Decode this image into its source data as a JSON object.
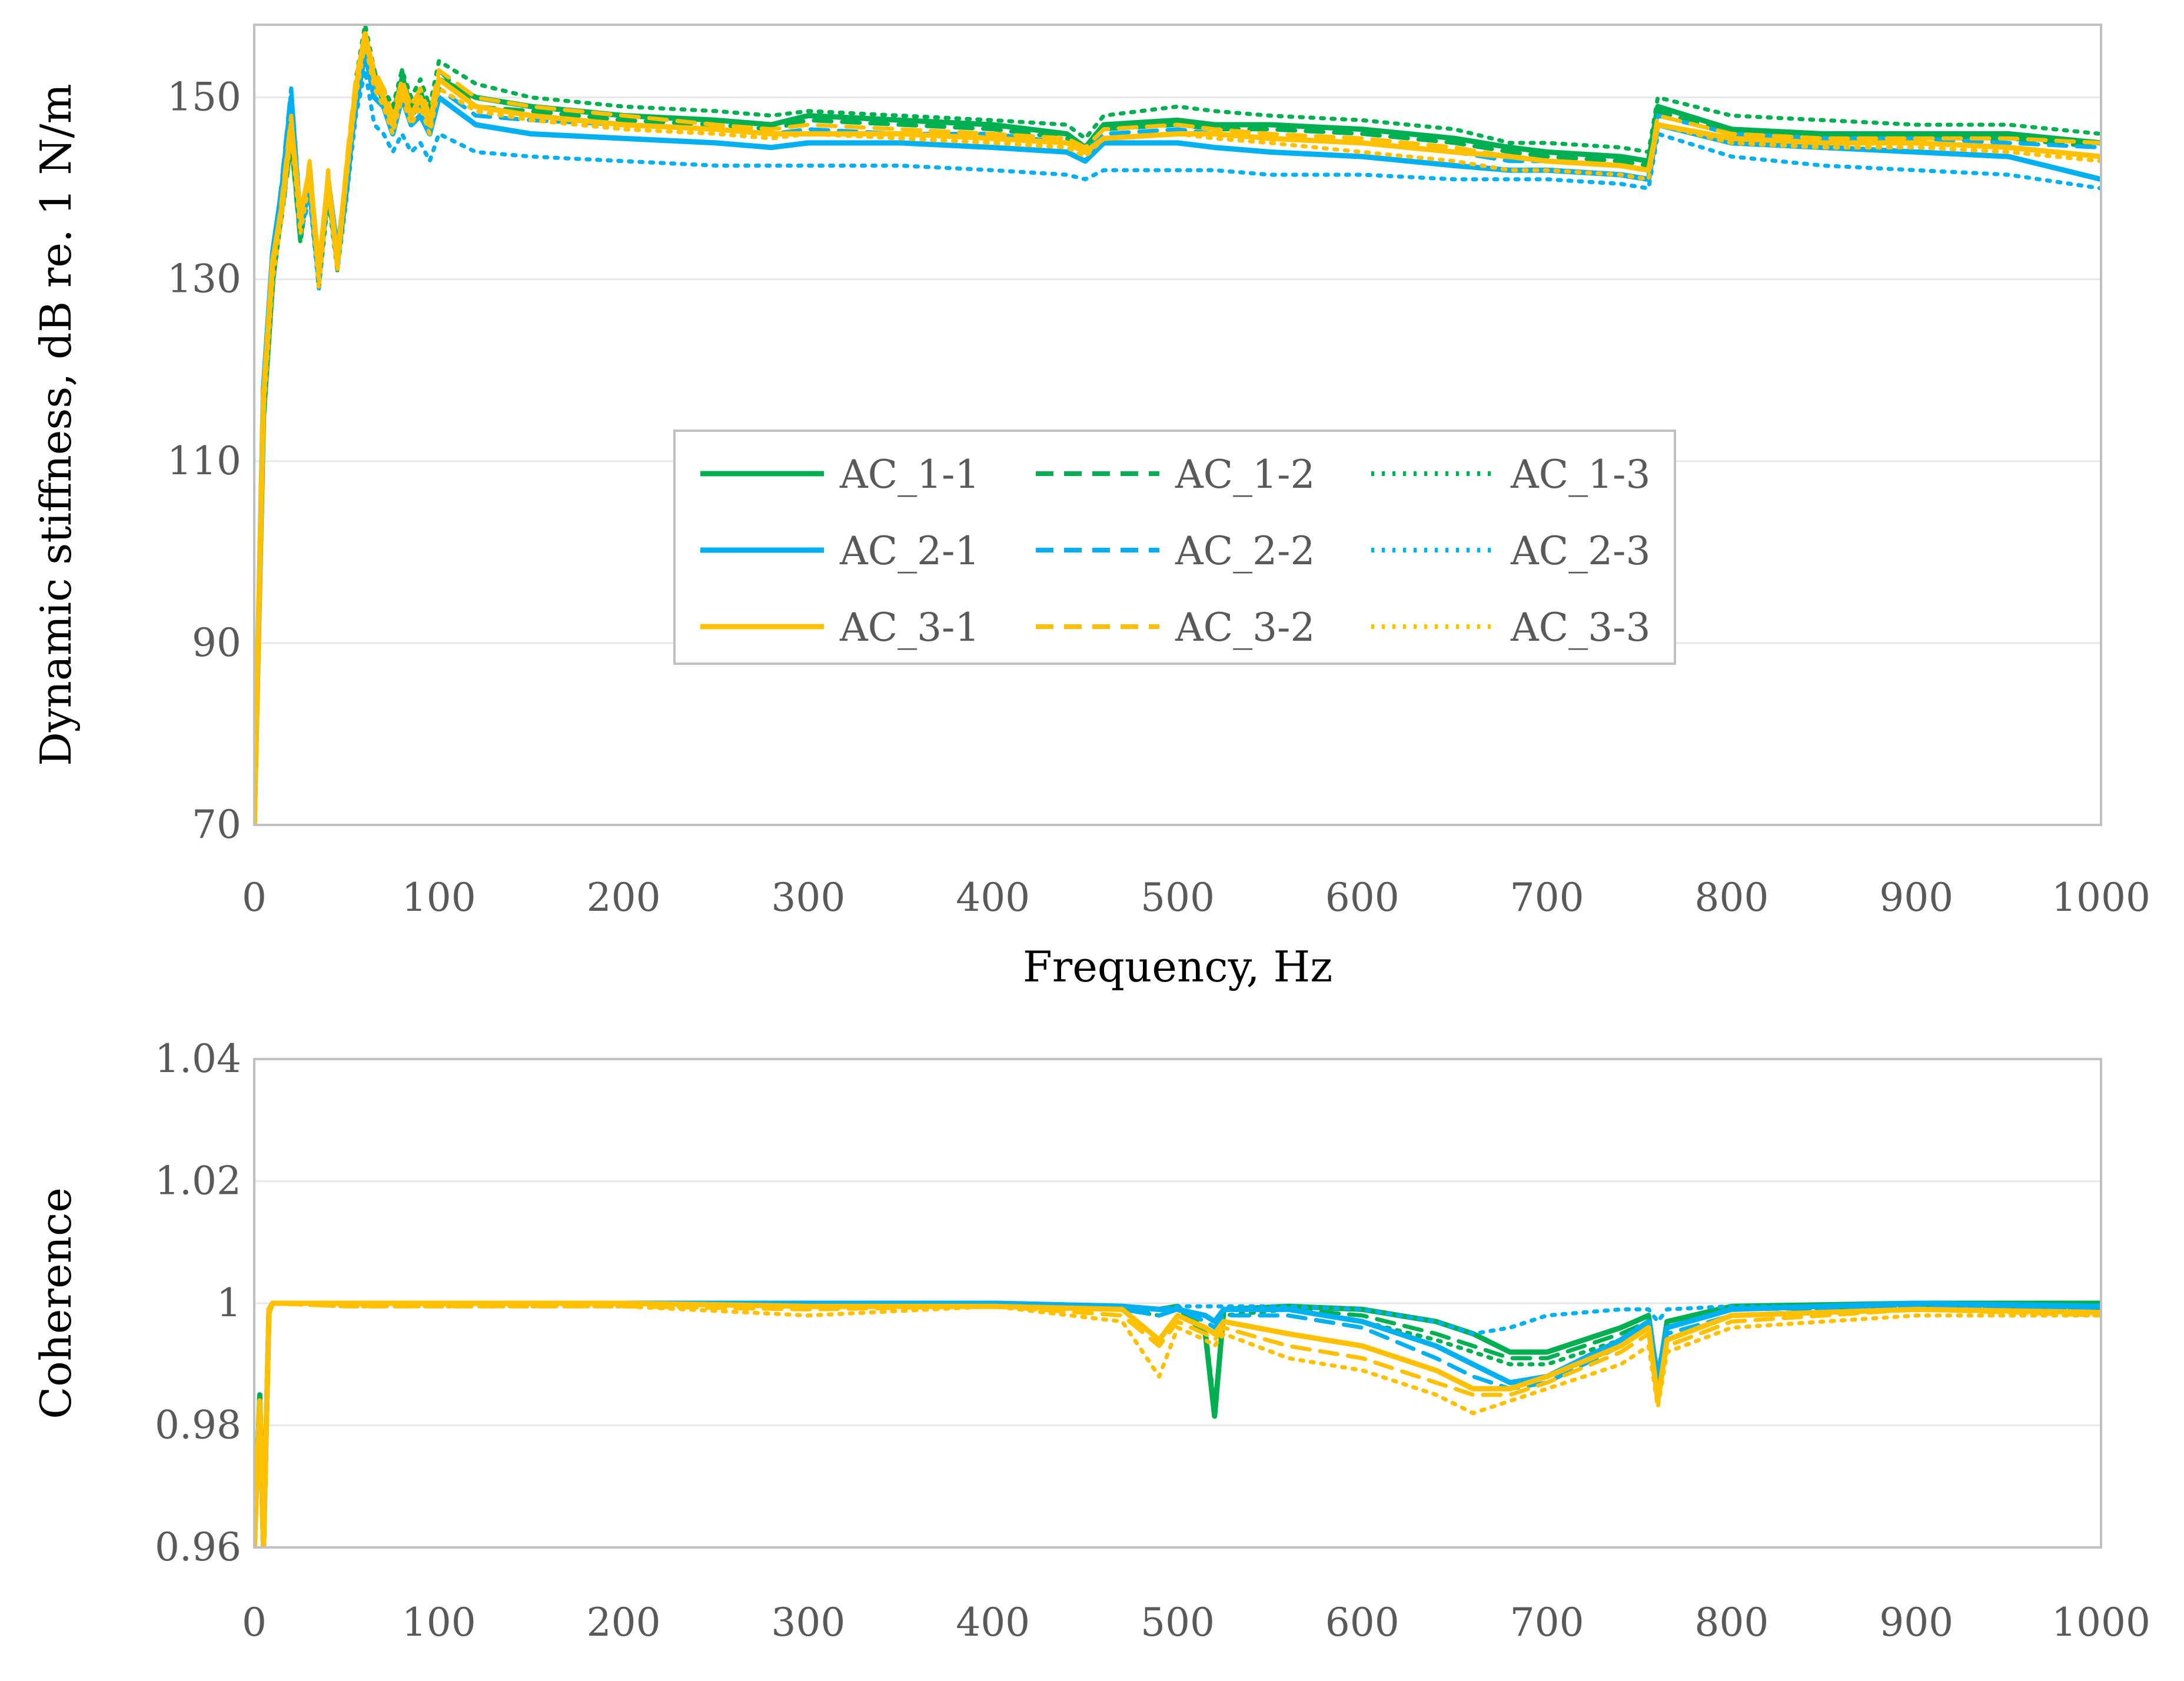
{
  "chart_data": [
    {
      "type": "line",
      "xlabel": "Frequency, Hz",
      "ylabel": "Dynamic stiffness, dB re. 1 N/m",
      "xlim": [
        0,
        1000
      ],
      "ylim": [
        70,
        158
      ],
      "xticks": [
        "0",
        "100",
        "200",
        "300",
        "400",
        "500",
        "600",
        "700",
        "800",
        "900",
        "1000"
      ],
      "yticks": [
        "70",
        "90",
        "110",
        "130",
        "150"
      ],
      "ytick_values": [
        70,
        90,
        110,
        130,
        150
      ],
      "grid": "horizontal",
      "legend": {
        "position": "center",
        "entries": [
          "AC_1-1",
          "AC_1-2",
          "AC_1-3",
          "AC_2-1",
          "AC_2-2",
          "AC_2-3",
          "AC_3-1",
          "AC_3-2",
          "AC_3-3"
        ]
      },
      "x": [
        0,
        5,
        10,
        15,
        20,
        25,
        30,
        35,
        40,
        45,
        50,
        55,
        60,
        65,
        70,
        75,
        80,
        85,
        90,
        95,
        100,
        120,
        150,
        200,
        250,
        280,
        300,
        350,
        400,
        440,
        450,
        460,
        500,
        520,
        550,
        600,
        650,
        680,
        700,
        740,
        755,
        760,
        800,
        850,
        900,
        950,
        1000
      ],
      "series": [
        {
          "name": "AC_1-1",
          "color": "#00b050",
          "dash": "solid",
          "values": [
            70,
            115,
            130,
            138,
            146,
            135,
            142,
            130,
            140,
            132,
            140,
            150,
            157,
            152,
            150,
            148,
            152,
            149,
            150,
            148,
            152,
            150,
            149,
            148,
            147.5,
            147,
            148,
            147.5,
            147,
            146,
            144.5,
            147,
            147.5,
            147,
            147,
            146.5,
            145.5,
            144.5,
            144,
            143.5,
            143,
            149,
            146.5,
            146,
            146,
            146,
            145
          ]
        },
        {
          "name": "AC_1-2",
          "color": "#00b050",
          "dash": "dashed",
          "values": [
            70,
            115,
            131,
            137,
            145,
            134,
            143,
            131,
            141,
            131,
            141,
            151,
            156,
            153,
            149,
            147,
            153,
            148,
            151,
            147,
            153,
            149,
            148.5,
            147.5,
            147,
            146.5,
            147.5,
            147,
            146.5,
            145.5,
            144,
            146.5,
            147,
            146.5,
            146.5,
            146,
            145,
            144,
            143.5,
            143,
            142.5,
            148.5,
            146,
            145.5,
            145.5,
            145.5,
            144.5
          ]
        },
        {
          "name": "AC_1-3",
          "color": "#00b050",
          "dash": "dotted",
          "values": [
            70,
            114,
            129,
            139,
            147,
            134,
            141,
            129,
            139,
            131,
            139,
            152,
            158,
            153,
            151,
            149,
            153,
            150,
            152,
            149,
            154,
            151.5,
            150,
            149,
            148.5,
            148,
            148.5,
            148,
            147.5,
            147,
            145.5,
            148,
            149,
            148.5,
            148,
            147.5,
            146.5,
            145,
            145,
            144.5,
            144,
            150,
            148,
            147.5,
            147,
            147,
            146
          ]
        },
        {
          "name": "AC_2-1",
          "color": "#00b0f0",
          "dash": "solid",
          "values": [
            70,
            118,
            133,
            140,
            150,
            136,
            140,
            130,
            141,
            133,
            141,
            149,
            155,
            150,
            149,
            146,
            150,
            147,
            148,
            146,
            150,
            147,
            146,
            145.5,
            145,
            144.5,
            145,
            145,
            144.5,
            144,
            143,
            145,
            145,
            144.5,
            144,
            143.5,
            142.5,
            142,
            142,
            141.5,
            141,
            147,
            145,
            144.5,
            144,
            143.5,
            141
          ]
        },
        {
          "name": "AC_2-2",
          "color": "#00b0f0",
          "dash": "dashed",
          "values": [
            70,
            117,
            132,
            141,
            151,
            137,
            141,
            131,
            140,
            132,
            140,
            150,
            156,
            151,
            150,
            147,
            151,
            148,
            149,
            147,
            151,
            148,
            147.5,
            147,
            146.5,
            146,
            146.5,
            146,
            146,
            145,
            144,
            146,
            146.5,
            146,
            145.5,
            145,
            144,
            143,
            143,
            142.5,
            142,
            148,
            146,
            145.5,
            145.5,
            145,
            144.5
          ]
        },
        {
          "name": "AC_2-3",
          "color": "#00b0f0",
          "dash": "dotted",
          "values": [
            70,
            116,
            131,
            139,
            149,
            135,
            139,
            129,
            140,
            131,
            139,
            148,
            153,
            147,
            146,
            144,
            146,
            144,
            145,
            143,
            146,
            144,
            143.5,
            143,
            142.5,
            142.5,
            142.5,
            142.5,
            142,
            141.5,
            141,
            142,
            142,
            142,
            141.5,
            141.5,
            141,
            141,
            141,
            140.5,
            140,
            146,
            143.5,
            142.5,
            142,
            141.5,
            140
          ]
        },
        {
          "name": "AC_3-1",
          "color": "#ffc000",
          "dash": "solid",
          "values": [
            70,
            117,
            132,
            138,
            147,
            137,
            142,
            131,
            141,
            132,
            142,
            151,
            157,
            152,
            150,
            147,
            151,
            148,
            150,
            147,
            152,
            149,
            148,
            147,
            146.5,
            146,
            146,
            146,
            145.5,
            145,
            144,
            145.5,
            146,
            146,
            145.5,
            145,
            144,
            143.5,
            143,
            142.5,
            142,
            147,
            145.5,
            145,
            145,
            144.5,
            143.5
          ]
        },
        {
          "name": "AC_3-2",
          "color": "#ffc000",
          "dash": "dashed",
          "values": [
            70,
            116,
            131,
            139,
            148,
            136,
            143,
            130,
            142,
            131,
            143,
            152,
            157,
            153,
            151,
            148,
            152,
            149,
            151,
            148,
            153,
            150,
            149,
            148,
            147,
            146.5,
            147,
            146.5,
            146,
            145.5,
            144.5,
            146.5,
            147,
            146.5,
            146,
            145.5,
            144.5,
            143.5,
            143,
            142.5,
            142,
            148,
            146,
            145.5,
            145.5,
            145.5,
            145
          ]
        },
        {
          "name": "AC_3-3",
          "color": "#ffc000",
          "dash": "dotted",
          "values": [
            70,
            115,
            130,
            137,
            146,
            135,
            141,
            129,
            140,
            131,
            141,
            150,
            156,
            151,
            149,
            146,
            150,
            147,
            149,
            146,
            151,
            148.5,
            147.5,
            146.5,
            146,
            145.5,
            146,
            145.5,
            145,
            144.5,
            143.5,
            145.5,
            146,
            145.5,
            145,
            144,
            143,
            142,
            142,
            141.5,
            141,
            147,
            145,
            144.5,
            144.5,
            144,
            143
          ]
        }
      ]
    },
    {
      "type": "line",
      "xlabel": "",
      "ylabel": "Coherence",
      "xlim": [
        0,
        1000
      ],
      "ylim": [
        0.96,
        1.04
      ],
      "xticks": [
        "0",
        "100",
        "200",
        "300",
        "400",
        "500",
        "600",
        "700",
        "800",
        "900",
        "1000"
      ],
      "yticks": [
        "0.96",
        "0.98",
        "1",
        "1.02",
        "1.04"
      ],
      "ytick_values": [
        0.96,
        0.98,
        1.0,
        1.02,
        1.04
      ],
      "grid": "horizontal",
      "x": [
        0,
        3,
        5,
        8,
        10,
        50,
        200,
        300,
        400,
        470,
        490,
        500,
        515,
        520,
        525,
        560,
        600,
        640,
        660,
        680,
        700,
        740,
        755,
        760,
        765,
        800,
        900,
        1000
      ],
      "series": [
        {
          "name": "AC_1-1",
          "color": "#00b050",
          "dash": "solid",
          "values": [
            0.96,
            0.985,
            0.96,
            0.999,
            1.0,
            1.0,
            1.0,
            1.0,
            1.0,
            0.9995,
            0.999,
            0.9995,
            0.995,
            0.9815,
            0.999,
            0.9995,
            0.999,
            0.997,
            0.995,
            0.992,
            0.992,
            0.996,
            0.998,
            0.987,
            0.997,
            0.9995,
            1.0,
            1.0
          ]
        },
        {
          "name": "AC_1-2",
          "color": "#00b050",
          "dash": "dashed",
          "values": [
            0.96,
            0.983,
            0.96,
            0.998,
            1.0,
            1.0,
            1.0,
            0.9995,
            1.0,
            0.9995,
            0.998,
            0.999,
            0.995,
            0.982,
            0.999,
            0.999,
            0.998,
            0.995,
            0.993,
            0.991,
            0.991,
            0.995,
            0.997,
            0.986,
            0.996,
            0.999,
            0.9995,
            0.999
          ]
        },
        {
          "name": "AC_1-3",
          "color": "#00b050",
          "dash": "dotted",
          "values": [
            0.96,
            0.982,
            0.96,
            0.998,
            1.0,
            0.9995,
            1.0,
            0.9995,
            0.9995,
            0.999,
            0.998,
            0.999,
            0.996,
            0.983,
            0.998,
            0.999,
            0.997,
            0.994,
            0.992,
            0.99,
            0.99,
            0.994,
            0.996,
            0.986,
            0.996,
            0.999,
            0.9995,
            0.999
          ]
        },
        {
          "name": "AC_2-1",
          "color": "#00b0f0",
          "dash": "solid",
          "values": [
            0.96,
            0.984,
            0.96,
            0.999,
            1.0,
            1.0,
            1.0,
            1.0,
            1.0,
            0.9995,
            0.999,
            0.999,
            0.998,
            0.997,
            0.999,
            0.999,
            0.997,
            0.993,
            0.99,
            0.987,
            0.988,
            0.994,
            0.997,
            0.988,
            0.996,
            0.999,
            1.0,
            0.9995
          ]
        },
        {
          "name": "AC_2-2",
          "color": "#00b0f0",
          "dash": "dashed",
          "values": [
            0.96,
            0.983,
            0.96,
            0.999,
            1.0,
            1.0,
            1.0,
            0.9995,
            0.9995,
            0.999,
            0.998,
            0.999,
            0.997,
            0.996,
            0.998,
            0.998,
            0.996,
            0.991,
            0.988,
            0.986,
            0.987,
            0.993,
            0.996,
            0.987,
            0.995,
            0.998,
            0.9995,
            0.999
          ]
        },
        {
          "name": "AC_2-3",
          "color": "#00b0f0",
          "dash": "dotted",
          "values": [
            0.96,
            0.983,
            0.96,
            0.999,
            1.0,
            1.0,
            1.0,
            0.9995,
            0.9995,
            0.9995,
            0.999,
            0.9995,
            0.9995,
            0.9995,
            0.9995,
            0.9995,
            0.999,
            0.997,
            0.995,
            0.996,
            0.998,
            0.999,
            0.999,
            0.997,
            0.999,
            0.9995,
            0.9995,
            0.999
          ]
        },
        {
          "name": "AC_3-1",
          "color": "#ffc000",
          "dash": "solid",
          "values": [
            0.96,
            0.984,
            0.96,
            0.999,
            1.0,
            1.0,
            1.0,
            0.9995,
            0.9995,
            0.999,
            0.994,
            0.998,
            0.996,
            0.995,
            0.997,
            0.995,
            0.993,
            0.989,
            0.986,
            0.986,
            0.988,
            0.993,
            0.996,
            0.984,
            0.994,
            0.998,
            0.999,
            0.9985
          ]
        },
        {
          "name": "AC_3-2",
          "color": "#ffc000",
          "dash": "dashed",
          "values": [
            0.96,
            0.983,
            0.96,
            0.998,
            1.0,
            0.9995,
            0.9995,
            0.999,
            0.9995,
            0.998,
            0.993,
            0.997,
            0.995,
            0.994,
            0.996,
            0.993,
            0.991,
            0.987,
            0.985,
            0.985,
            0.987,
            0.992,
            0.995,
            0.984,
            0.993,
            0.997,
            0.999,
            0.998
          ]
        },
        {
          "name": "AC_3-3",
          "color": "#ffc000",
          "dash": "dotted",
          "values": [
            0.96,
            0.982,
            0.96,
            0.998,
            1.0,
            0.9995,
            0.9995,
            0.998,
            0.9995,
            0.997,
            0.988,
            0.996,
            0.994,
            0.993,
            0.995,
            0.991,
            0.989,
            0.985,
            0.982,
            0.984,
            0.986,
            0.99,
            0.993,
            0.983,
            0.992,
            0.996,
            0.998,
            0.998
          ]
        }
      ]
    }
  ]
}
